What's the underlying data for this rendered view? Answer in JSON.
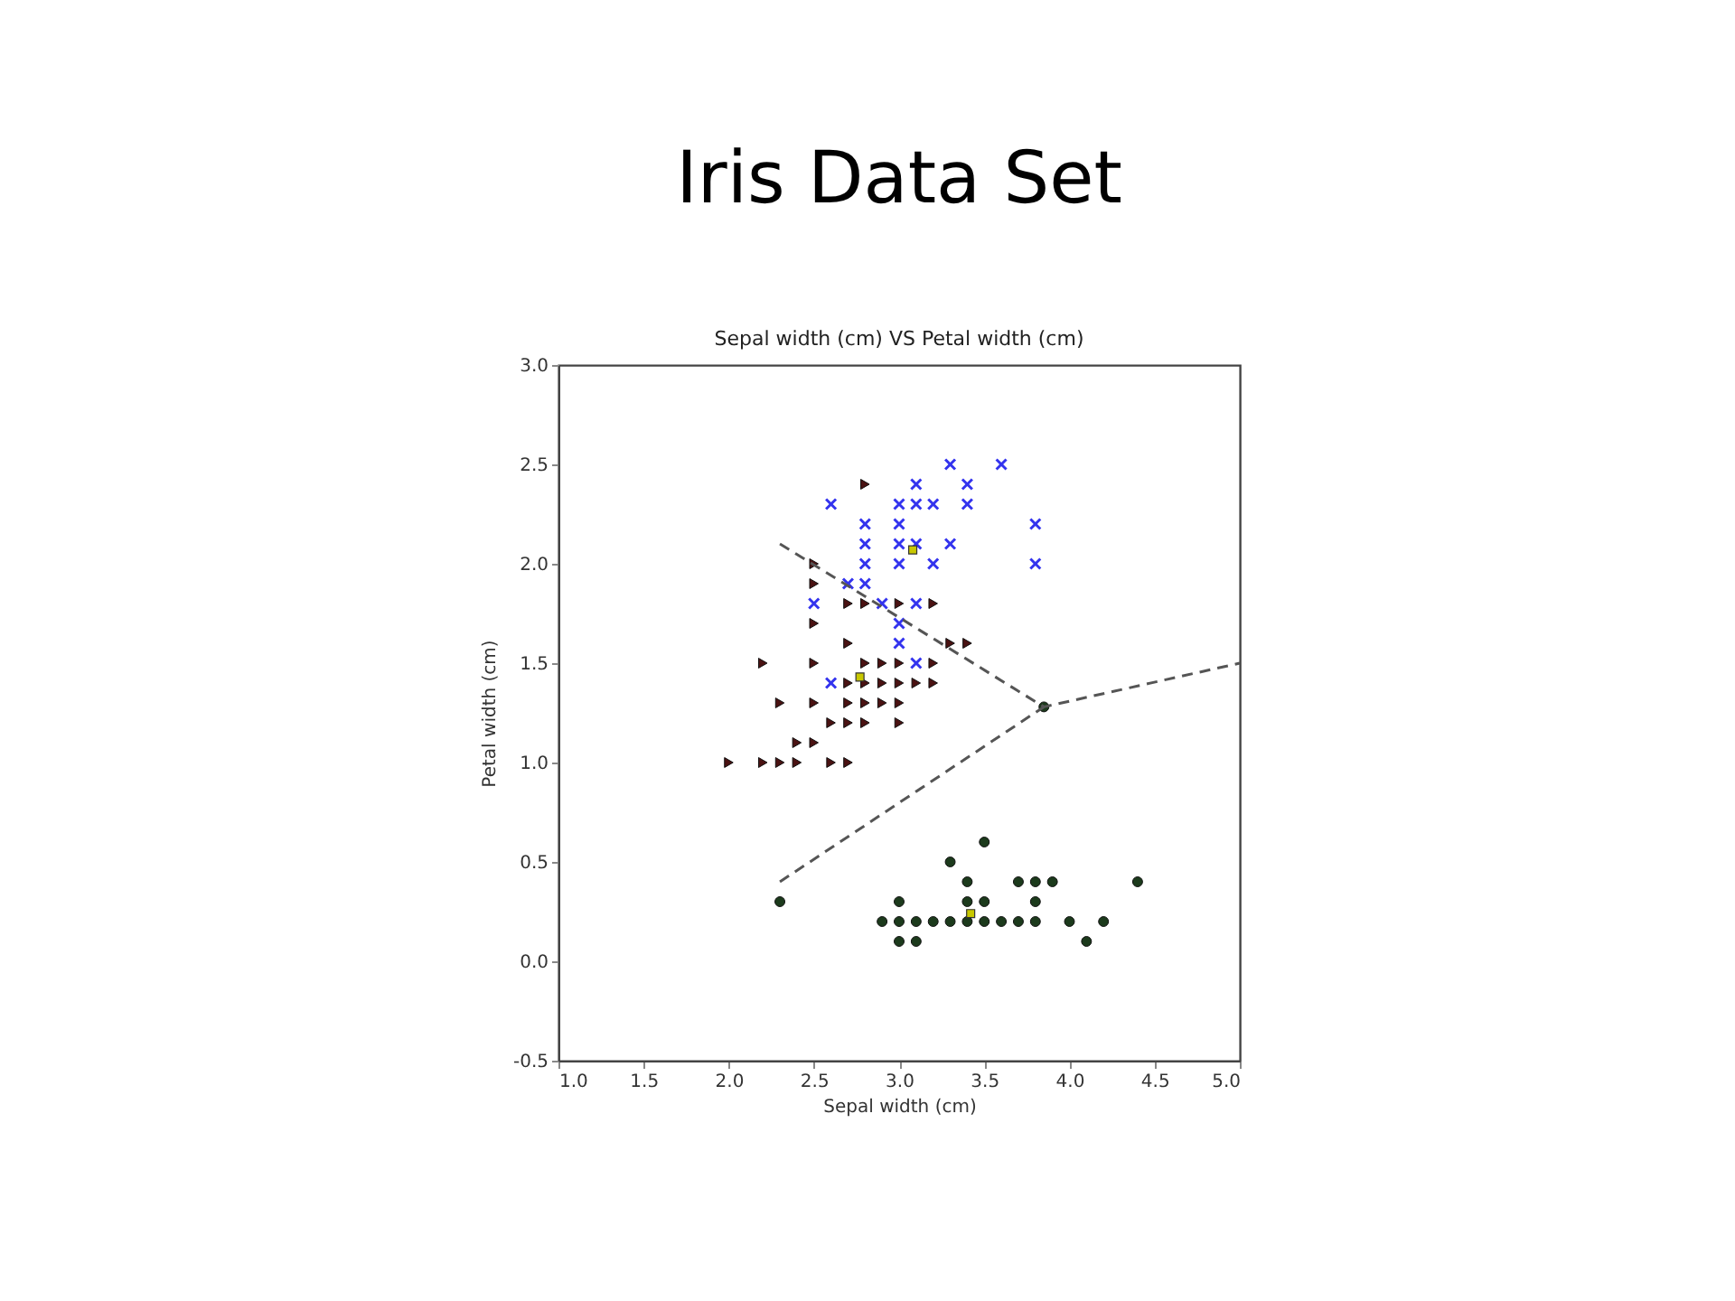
{
  "chart_data": {
    "type": "scatter",
    "title": "Iris Data Set",
    "subtitle": "Sepal width (cm) VS Petal width (cm)",
    "xlabel": "Sepal width (cm)",
    "ylabel": "Petal width (cm)",
    "xlim": [
      1.0,
      5.0
    ],
    "xticks": [
      {
        "value": 1,
        "label": "1.0"
      },
      1.5,
      {
        "value": 2,
        "label": "2.0"
      },
      2.5,
      {
        "value": 3,
        "label": "3.0"
      },
      3.5,
      {
        "value": 4,
        "label": "4.0"
      },
      4.5,
      {
        "value": 5,
        "label": "5.0"
      }
    ],
    "ylim": [
      -0.5,
      3.0
    ],
    "yticks": [
      -0.5,
      {
        "value": 0,
        "label": "0.0"
      },
      0.5,
      {
        "value": 1,
        "label": "1.0"
      },
      1.5,
      {
        "value": 2,
        "label": "2.0"
      },
      2.5,
      {
        "value": 3,
        "label": "3.0"
      }
    ],
    "grid": false,
    "series": [
      {
        "marker": "cross",
        "color": "#3333ee",
        "x": [
          3.3,
          3.6,
          3.1,
          3.4,
          2.6,
          3.0,
          3.1,
          3.2,
          3.4,
          2.8,
          3.0,
          3.8,
          2.8,
          3.0,
          3.1,
          3.3,
          2.8,
          3.0,
          3.2,
          3.8,
          2.7,
          2.8,
          2.5,
          2.9,
          3.1,
          3.0,
          3.0,
          3.1,
          2.6
        ],
        "values": [
          2.5,
          2.5,
          2.4,
          2.4,
          2.3,
          2.3,
          2.3,
          2.3,
          2.3,
          2.2,
          2.2,
          2.2,
          2.1,
          2.1,
          2.1,
          2.1,
          2.0,
          2.0,
          2.0,
          2.0,
          1.9,
          1.9,
          1.8,
          1.8,
          1.8,
          1.7,
          1.6,
          1.5,
          1.4
        ]
      },
      {
        "marker": "triangle",
        "color": "#4a1212",
        "x": [
          2.8,
          2.5,
          2.5,
          2.7,
          2.8,
          3.0,
          3.2,
          2.5,
          2.7,
          3.3,
          3.4,
          2.2,
          2.5,
          2.8,
          2.9,
          3.0,
          3.2,
          2.7,
          2.8,
          2.9,
          3.0,
          3.1,
          3.2,
          2.3,
          2.5,
          2.7,
          2.8,
          2.9,
          3.0,
          2.6,
          2.7,
          2.8,
          3.0,
          2.4,
          2.5,
          2.0,
          2.2,
          2.3,
          2.4,
          2.6,
          2.7
        ],
        "values": [
          2.4,
          2.0,
          1.9,
          1.8,
          1.8,
          1.8,
          1.8,
          1.7,
          1.6,
          1.6,
          1.6,
          1.5,
          1.5,
          1.5,
          1.5,
          1.5,
          1.5,
          1.4,
          1.4,
          1.4,
          1.4,
          1.4,
          1.4,
          1.3,
          1.3,
          1.3,
          1.3,
          1.3,
          1.3,
          1.2,
          1.2,
          1.2,
          1.2,
          1.1,
          1.1,
          1.0,
          1.0,
          1.0,
          1.0,
          1.0,
          1.0
        ]
      },
      {
        "marker": "circle",
        "color": "#1c3a1c",
        "x": [
          3.5,
          3.3,
          3.4,
          3.7,
          3.8,
          3.9,
          4.4,
          2.3,
          3.0,
          3.4,
          3.5,
          3.8,
          2.9,
          3.0,
          3.1,
          3.2,
          3.3,
          3.4,
          3.5,
          3.6,
          3.7,
          3.8,
          4.0,
          4.2,
          3.0,
          3.1,
          4.1,
          3.85
        ],
        "values": [
          0.6,
          0.5,
          0.4,
          0.4,
          0.4,
          0.4,
          0.4,
          0.3,
          0.3,
          0.3,
          0.3,
          0.3,
          0.2,
          0.2,
          0.2,
          0.2,
          0.2,
          0.2,
          0.2,
          0.2,
          0.2,
          0.2,
          0.2,
          0.2,
          0.1,
          0.1,
          0.1,
          1.28
        ]
      },
      {
        "marker": "square",
        "color": "#c8c800",
        "x": [
          3.08,
          2.77,
          3.42
        ],
        "values": [
          2.07,
          1.43,
          0.24
        ]
      },
      {
        "type": "line",
        "marker": "none",
        "line_style": "dashed",
        "color": "#555555",
        "x": [
          2.3,
          3.85,
          5.0
        ],
        "values": [
          2.1,
          1.28,
          1.5
        ]
      },
      {
        "type": "line",
        "marker": "none",
        "line_style": "dashed",
        "color": "#555555",
        "x": [
          2.3,
          3.85
        ],
        "values": [
          0.4,
          1.28
        ]
      }
    ]
  }
}
